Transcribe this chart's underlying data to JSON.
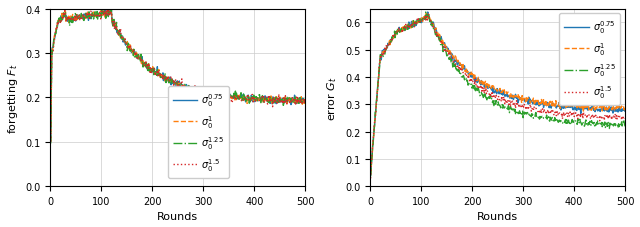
{
  "xlabel": "Rounds",
  "ylabel_left": "forgetting $F_t$",
  "ylabel_right": "error $G_t$",
  "xlim": [
    0,
    500
  ],
  "ylim_left": [
    0.0,
    0.4
  ],
  "ylim_right": [
    0.0,
    0.65
  ],
  "yticks_left": [
    0.0,
    0.1,
    0.2,
    0.3,
    0.4
  ],
  "yticks_right": [
    0.0,
    0.1,
    0.2,
    0.3,
    0.4,
    0.5,
    0.6
  ],
  "xticks": [
    0,
    100,
    200,
    300,
    400,
    500
  ],
  "colors": [
    "#1f77b4",
    "#ff7f0e",
    "#2ca02c",
    "#d62728"
  ],
  "linestyles": [
    "-",
    "--",
    "-.",
    ":"
  ],
  "labels": [
    "$\\sigma_0^{0.75}$",
    "$\\sigma_0^{1}$",
    "$\\sigma_0^{1.25}$",
    "$\\sigma_0^{1.5}$"
  ],
  "linewidths": [
    1.0,
    1.0,
    1.0,
    1.0
  ],
  "n_rounds": 500,
  "legend_left_loc": "lower center",
  "legend_right_loc": "upper right"
}
